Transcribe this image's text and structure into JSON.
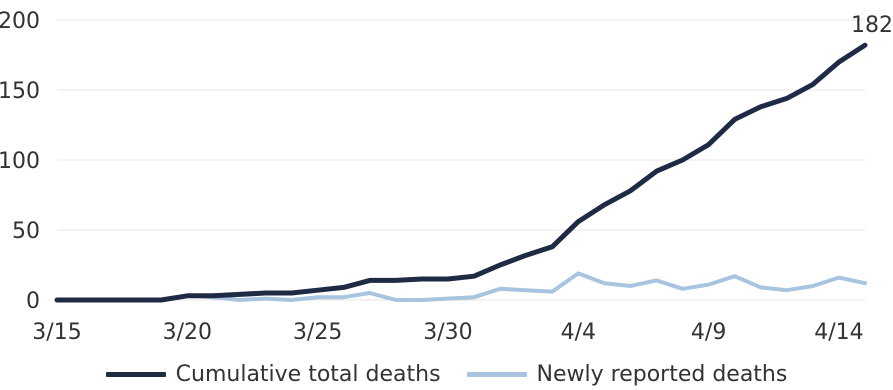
{
  "chart_data": {
    "type": "line",
    "title": "",
    "xlabel": "",
    "ylabel": "",
    "x": [
      "3/15",
      "3/16",
      "3/17",
      "3/18",
      "3/19",
      "3/20",
      "3/21",
      "3/22",
      "3/23",
      "3/24",
      "3/25",
      "3/26",
      "3/27",
      "3/28",
      "3/29",
      "3/30",
      "3/31",
      "4/1",
      "4/2",
      "4/3",
      "4/4",
      "4/5",
      "4/6",
      "4/7",
      "4/8",
      "4/9",
      "4/10",
      "4/11",
      "4/12",
      "4/13",
      "4/14",
      "4/15"
    ],
    "x_tick_labels": [
      "3/15",
      "3/20",
      "3/25",
      "3/30",
      "4/4",
      "4/9",
      "4/14"
    ],
    "ylim": [
      0,
      200
    ],
    "y_ticks": [
      0,
      50,
      100,
      150,
      200
    ],
    "grid": "horizontal",
    "legend_position": "bottom",
    "series": [
      {
        "name": "Cumulative total deaths",
        "color": "#1f2a44",
        "values": [
          0,
          0,
          0,
          0,
          0,
          3,
          3,
          4,
          5,
          5,
          7,
          9,
          14,
          14,
          15,
          15,
          17,
          25,
          32,
          38,
          56,
          68,
          78,
          92,
          100,
          111,
          129,
          138,
          144,
          154,
          170,
          182
        ]
      },
      {
        "name": "Newly reported deaths",
        "color": "#a8c4e0",
        "values": [
          0,
          0,
          0,
          0,
          0,
          3,
          2,
          0,
          1,
          0,
          2,
          2,
          5,
          0,
          0,
          1,
          2,
          8,
          7,
          6,
          19,
          12,
          10,
          14,
          8,
          11,
          17,
          9,
          7,
          10,
          16,
          12
        ]
      }
    ],
    "annotations": [
      {
        "series": "Cumulative total deaths",
        "point": "last",
        "text": "182"
      }
    ]
  }
}
